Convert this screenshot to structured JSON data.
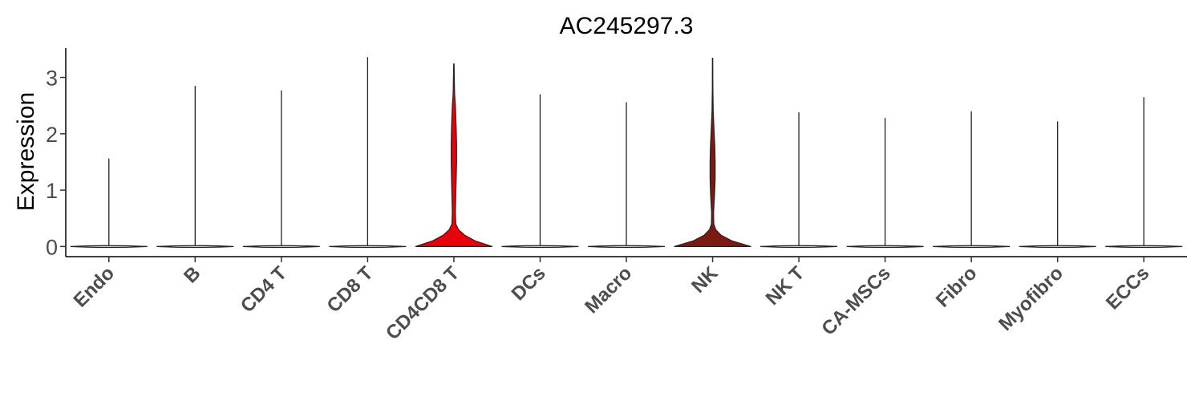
{
  "chart_data": {
    "type": "violin",
    "title": "AC245297.3",
    "xlabel": "",
    "ylabel": "Expression",
    "ylim": [
      -0.18,
      3.52
    ],
    "yticks": [
      0,
      1,
      2,
      3
    ],
    "grid": false,
    "legend": "none",
    "categories": [
      "Endo",
      "B",
      "CD4 T",
      "CD8 T",
      "CD4CD8 T",
      "DCs",
      "Macro",
      "NK",
      "NK T",
      "CA-MSCs",
      "Fibro",
      "Myofibro",
      "ECCs"
    ],
    "max_values": [
      1.56,
      2.85,
      2.77,
      3.36,
      3.24,
      2.7,
      2.56,
      3.34,
      2.38,
      2.28,
      2.4,
      2.22,
      2.65
    ],
    "fill_colors": [
      "#ffffff",
      "#ffffff",
      "#ffffff",
      "#ffffff",
      "#e8000b",
      "#ffffff",
      "#ffffff",
      "#7a1a10",
      "#ffffff",
      "#ffffff",
      "#ffffff",
      "#ffffff",
      "#ffffff"
    ],
    "expressing_profiles": {
      "CD4CD8 T": {
        "y": [
          0,
          0.1,
          0.2,
          0.3,
          0.4,
          0.6,
          0.9,
          1.2,
          1.5,
          1.8,
          2.1,
          2.3,
          2.5,
          2.7,
          3.0,
          3.24
        ],
        "w": [
          1.0,
          0.55,
          0.28,
          0.12,
          0.05,
          0.04,
          0.05,
          0.06,
          0.07,
          0.07,
          0.06,
          0.05,
          0.04,
          0.02,
          0.01,
          0.005
        ]
      },
      "NK": {
        "y": [
          0,
          0.1,
          0.2,
          0.3,
          0.4,
          0.6,
          0.9,
          1.2,
          1.5,
          1.8,
          2.1,
          2.4,
          2.8,
          3.34
        ],
        "w": [
          1.0,
          0.5,
          0.22,
          0.08,
          0.03,
          0.025,
          0.05,
          0.065,
          0.065,
          0.055,
          0.035,
          0.015,
          0.008,
          0.004
        ]
      }
    }
  }
}
